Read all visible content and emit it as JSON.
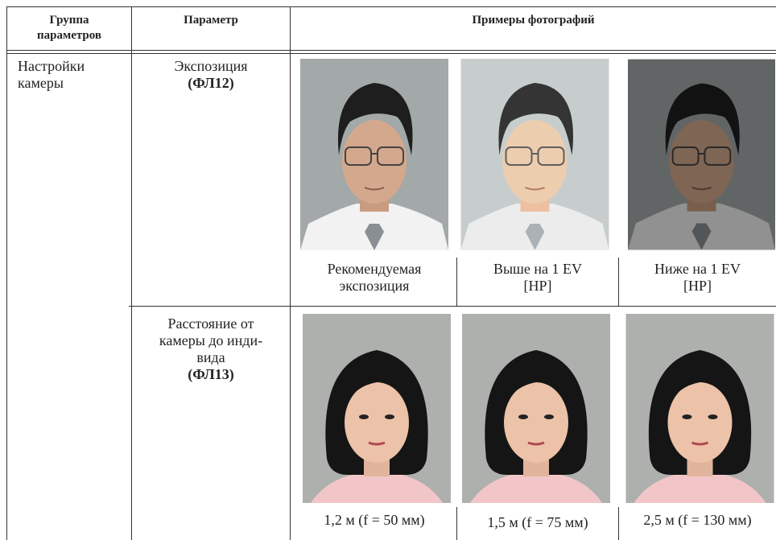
{
  "table": {
    "header": {
      "group": [
        "Группа",
        "параметров"
      ],
      "parameter": "Параметр",
      "examples": "Примеры фотографий"
    },
    "group": [
      "Настройки",
      "камеры"
    ],
    "rows": [
      {
        "parameter": [
          "Экспозиция"
        ],
        "code": "(ФЛ12)",
        "captions": [
          [
            "Рекомендуемая",
            "экспозиция"
          ],
          [
            "Выше на 1 EV",
            "[HP]"
          ],
          [
            "Ниже на 1 EV",
            "[HP]"
          ]
        ]
      },
      {
        "parameter": [
          "Расстояние от",
          "камеры до инди-",
          "вида"
        ],
        "code": "(ФЛ13)",
        "captions": [
          [
            "1,2 м (f = 50 мм)"
          ],
          [
            "1,5 м (f = 75 мм)"
          ],
          [
            "2,5 м (f = 130 мм)"
          ]
        ]
      }
    ]
  }
}
